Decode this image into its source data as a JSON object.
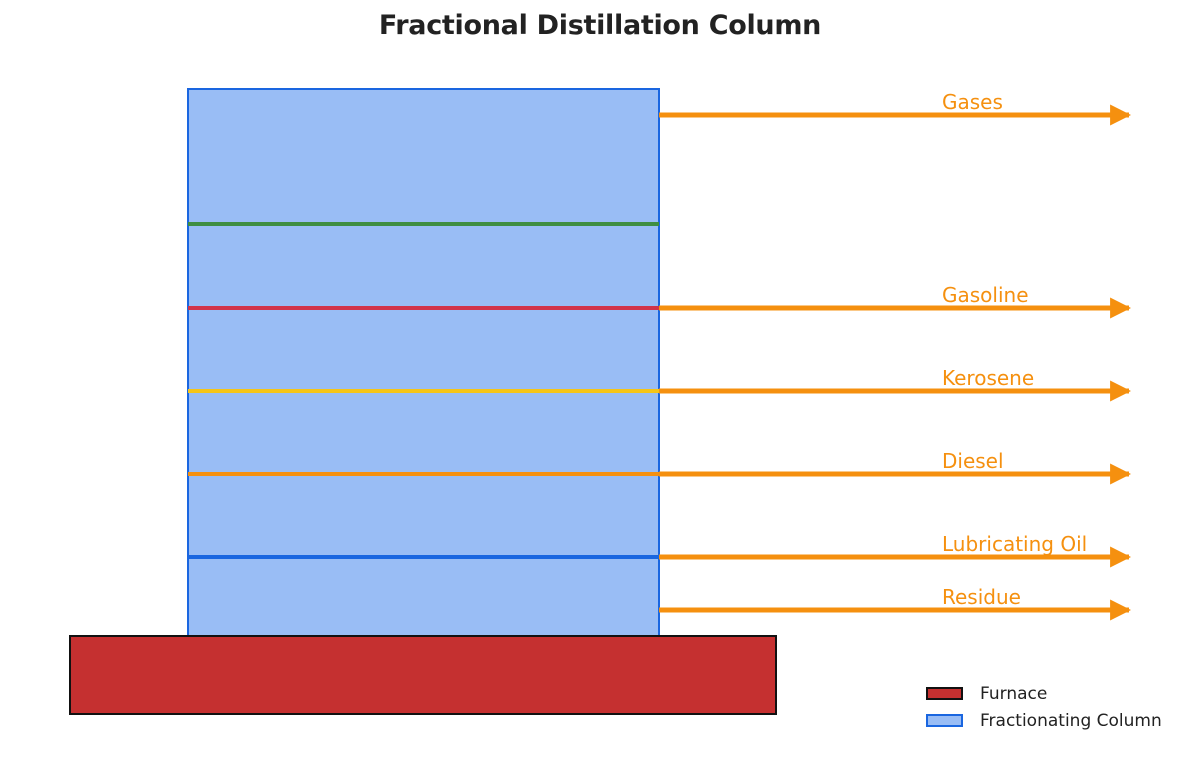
{
  "title": "Fractional Distillation Column",
  "colors": {
    "column_fill": "#99bdf5",
    "column_stroke": "#1a66e0",
    "furnace_fill": "#c53030",
    "furnace_stroke": "#111111",
    "arrow": "#f5900f",
    "label": "#f5900f"
  },
  "trays": [
    {
      "color": "#3e8e41"
    },
    {
      "color": "#d1344a"
    },
    {
      "color": "#f5c518"
    },
    {
      "color": "#f5900f"
    },
    {
      "color": "#1a66e0"
    }
  ],
  "outputs": [
    {
      "label": "Gases"
    },
    {
      "label": "Gasoline"
    },
    {
      "label": "Kerosene"
    },
    {
      "label": "Diesel"
    },
    {
      "label": "Lubricating Oil"
    },
    {
      "label": "Residue"
    }
  ],
  "legend": [
    {
      "label": "Furnace",
      "fill": "#c53030",
      "stroke": "#111111"
    },
    {
      "label": "Fractionating Column",
      "fill": "#99bdf5",
      "stroke": "#1a66e0"
    }
  ]
}
